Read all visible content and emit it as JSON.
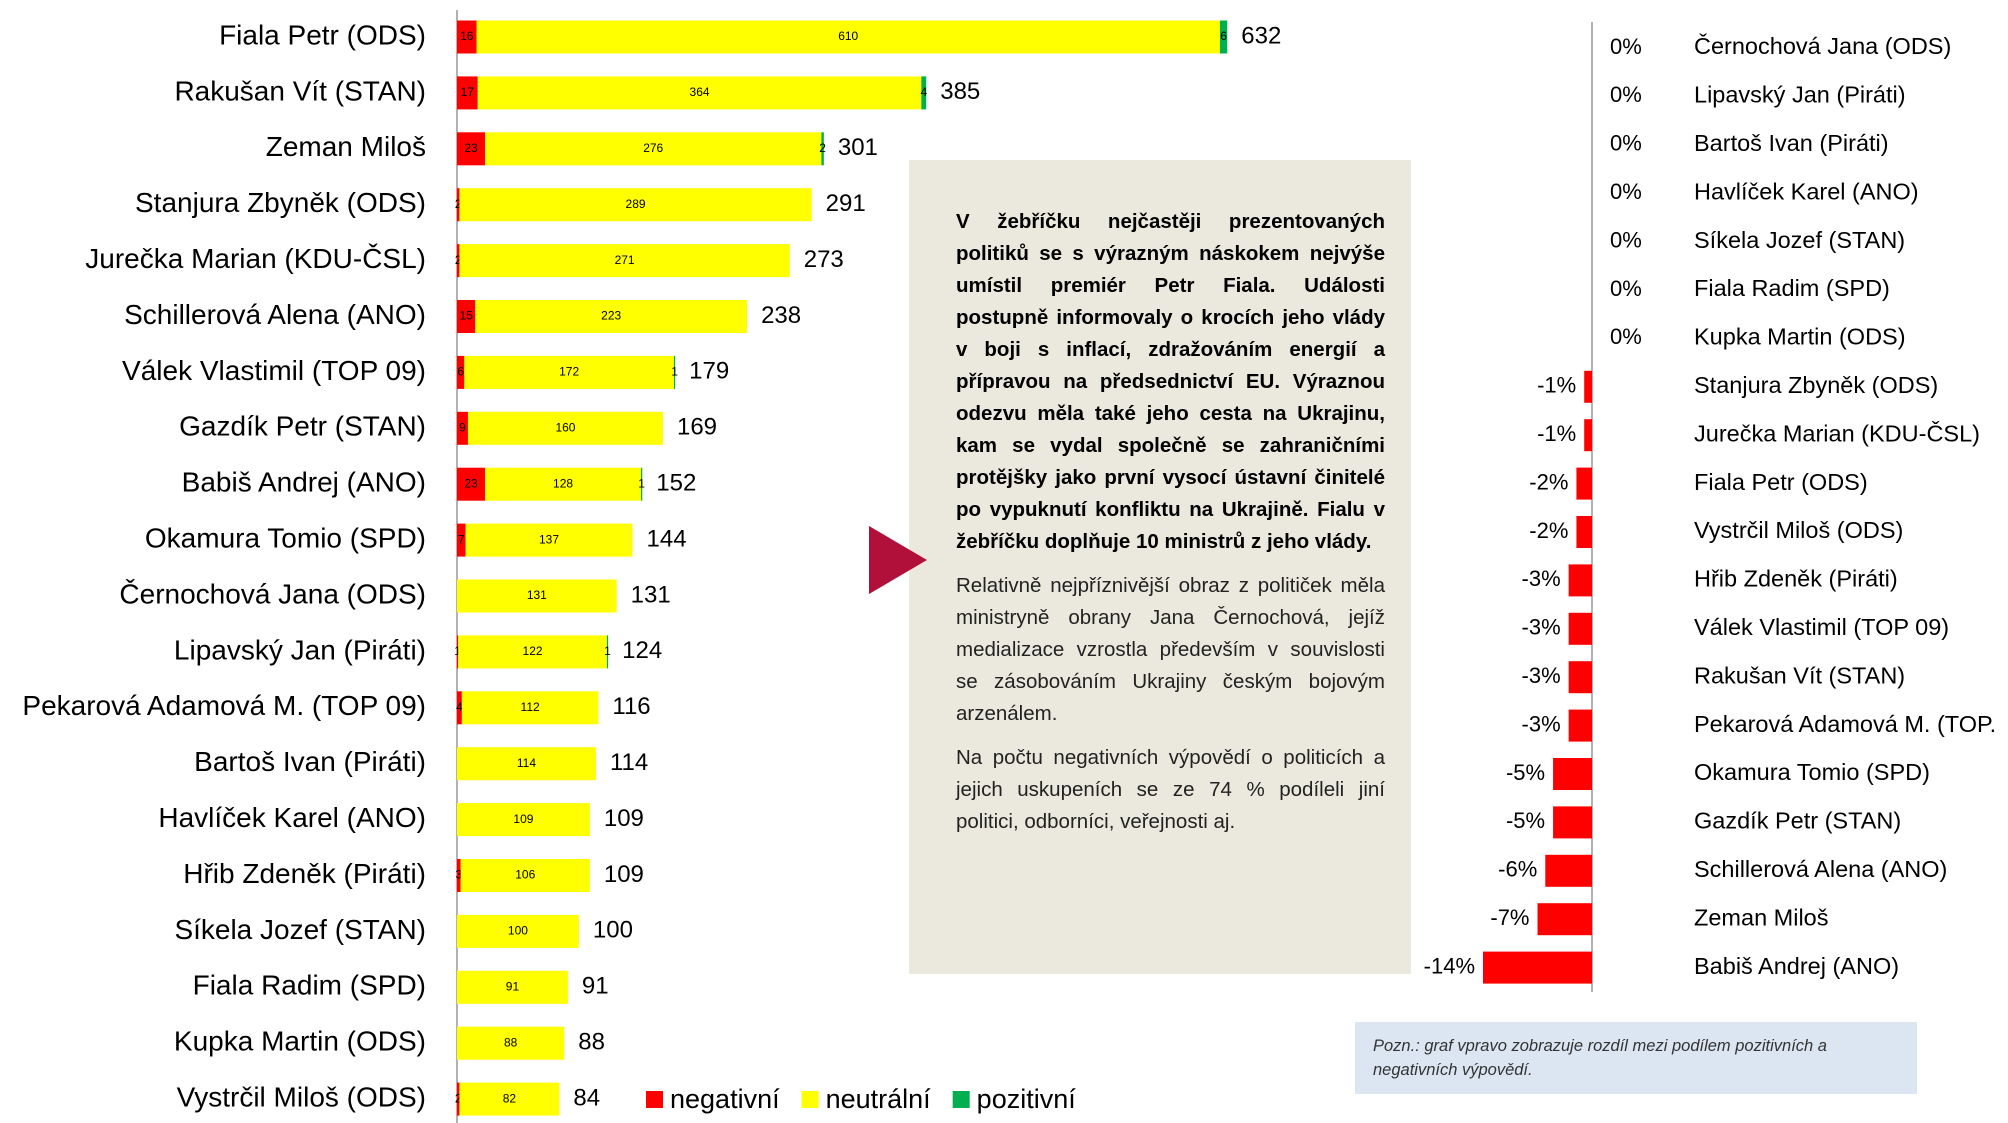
{
  "chart_data": [
    {
      "type": "bar",
      "orientation": "horizontal",
      "stacked": true,
      "categories": [
        "Fiala Petr (ODS)",
        "Rakušan Vít (STAN)",
        "Zeman Miloš",
        "Stanjura Zbyněk (ODS)",
        "Jurečka Marian (KDU-ČSL)",
        "Schillerová Alena (ANO)",
        "Válek Vlastimil (TOP 09)",
        "Gazdík Petr (STAN)",
        "Babiš Andrej (ANO)",
        "Okamura Tomio (SPD)",
        "Černochová Jana (ODS)",
        "Lipavský Jan (Piráti)",
        "Pekarová Adamová M. (TOP 09)",
        "Bartoš Ivan (Piráti)",
        "Havlíček Karel (ANO)",
        "Hřib Zdeněk (Piráti)",
        "Síkela Jozef (STAN)",
        "Fiala Radim (SPD)",
        "Kupka Martin (ODS)",
        "Vystrčil Miloš (ODS)"
      ],
      "series": [
        {
          "name": "negativní",
          "color": "#ff0000",
          "values": [
            16,
            17,
            23,
            2,
            2,
            15,
            6,
            9,
            23,
            7,
            0,
            1,
            4,
            0,
            0,
            3,
            0,
            0,
            0,
            2
          ]
        },
        {
          "name": "neutrální",
          "color": "#ffff00",
          "values": [
            610,
            364,
            276,
            289,
            271,
            223,
            172,
            160,
            128,
            137,
            131,
            122,
            112,
            114,
            109,
            106,
            100,
            91,
            88,
            82
          ]
        },
        {
          "name": "pozitivní",
          "color": "#00b050",
          "values": [
            6,
            4,
            2,
            0,
            0,
            0,
            1,
            0,
            1,
            0,
            0,
            1,
            0,
            0,
            0,
            0,
            0,
            0,
            0,
            0
          ]
        }
      ],
      "totals": [
        632,
        385,
        301,
        291,
        273,
        238,
        179,
        169,
        152,
        144,
        131,
        124,
        116,
        114,
        109,
        109,
        100,
        91,
        88,
        84
      ],
      "xlim": [
        0,
        640
      ],
      "legend": "bottom"
    },
    {
      "type": "bar",
      "orientation": "horizontal",
      "categories": [
        "Černochová Jana (ODS)",
        "Lipavský Jan (Piráti)",
        "Bartoš Ivan (Piráti)",
        "Havlíček Karel (ANO)",
        "Síkela Jozef (STAN)",
        "Fiala Radim (SPD)",
        "Kupka Martin (ODS)",
        "Stanjura Zbyněk (ODS)",
        "Jurečka Marian (KDU-ČSL)",
        "Fiala Petr (ODS)",
        "Vystrčil Miloš (ODS)",
        "Hřib Zdeněk (Piráti)",
        "Válek Vlastimil (TOP 09)",
        "Rakušan Vít (STAN)",
        "Pekarová Adamová M. (TOP.",
        "Okamura Tomio (SPD)",
        "Gazdík Petr (STAN)",
        "Schillerová Alena (ANO)",
        "Zeman Miloš",
        "Babiš Andrej (ANO)"
      ],
      "values": [
        0,
        0,
        0,
        0,
        0,
        0,
        0,
        -1,
        -1,
        -2,
        -2,
        -3,
        -3,
        -3,
        -3,
        -5,
        -5,
        -6,
        -7,
        -14
      ],
      "value_labels": [
        "0%",
        "0%",
        "0%",
        "0%",
        "0%",
        "0%",
        "0%",
        "-1%",
        "-1%",
        "-2%",
        "-2%",
        "-3%",
        "-3%",
        "-3%",
        "-3%",
        "-5%",
        "-5%",
        "-6%",
        "-7%",
        "-14%"
      ],
      "color": "#ff0000",
      "xlim": [
        -14,
        0
      ]
    }
  ],
  "text_box": {
    "paragraphs": [
      "V žebříčku nejčastěji prezentovaných politiků se s výrazným náskokem nejvýše umístil premiér Petr Fiala. Události postupně informovaly o krocích jeho vlády v boji s inflací, zdražováním energií a přípravou na předsednictví EU. Výraznou odezvu měla také jeho cesta na Ukrajinu, kam se vydal společně se zahraničními protějšky jako první vysocí ústavní činitelé po vypuknutí konfliktu na Ukrajině. Fialu v žebříčku doplňuje 10 ministrů z jeho vlády.",
      "Relativně nejpříznivější obraz z političek měla ministryně obrany Jana Černochová, jejíž medializace vzrostla především v souvislosti se zásobováním Ukrajiny českým bojovým arzenálem.",
      "Na počtu negativních výpovědí o politicích a jejich uskupeních se ze 74 % podíleli jiní politici, odborníci, veřejnosti aj."
    ]
  },
  "note": "Pozn.: graf vpravo zobrazuje rozdíl mezi podílem pozitivních a negativních výpovědí."
}
